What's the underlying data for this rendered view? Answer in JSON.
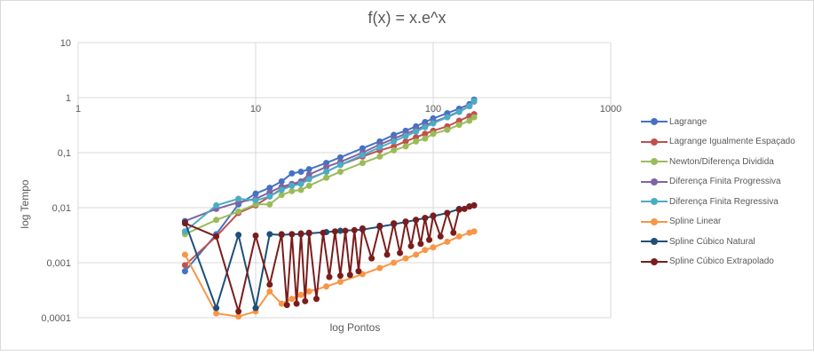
{
  "chart_data": {
    "type": "line",
    "title": "f(x) = x.e^x",
    "xlabel": "log Pontos",
    "ylabel": "log Tempo",
    "x_scale": "log",
    "y_scale": "log",
    "xlim": [
      1,
      1000
    ],
    "ylim": [
      0.0001,
      10
    ],
    "x_ticks": [
      "1",
      "10",
      "100",
      "1000"
    ],
    "y_ticks": [
      "10",
      "1",
      "0,1",
      "0,01",
      "0,001",
      "0,0001"
    ],
    "grid": true,
    "legend_position": "right",
    "series": [
      {
        "name": "Lagrange",
        "color": "#4472c4",
        "points": [
          [
            4,
            0.0007
          ],
          [
            6,
            0.0033
          ],
          [
            8,
            0.0115
          ],
          [
            10,
            0.018
          ],
          [
            12,
            0.023
          ],
          [
            14,
            0.03
          ],
          [
            16,
            0.042
          ],
          [
            18,
            0.045
          ],
          [
            20,
            0.05
          ],
          [
            25,
            0.065
          ],
          [
            30,
            0.082
          ],
          [
            40,
            0.12
          ],
          [
            50,
            0.16
          ],
          [
            60,
            0.21
          ],
          [
            70,
            0.25
          ],
          [
            80,
            0.3
          ],
          [
            90,
            0.36
          ],
          [
            100,
            0.42
          ],
          [
            120,
            0.52
          ],
          [
            140,
            0.63
          ],
          [
            160,
            0.76
          ],
          [
            170,
            0.92
          ]
        ]
      },
      {
        "name": "Lagrange Igualmente Espaçado",
        "color": "#c0504d",
        "points": [
          [
            4,
            0.0009
          ],
          [
            6,
            0.003
          ],
          [
            8,
            0.008
          ],
          [
            10,
            0.011
          ],
          [
            12,
            0.016
          ],
          [
            14,
            0.022
          ],
          [
            16,
            0.026
          ],
          [
            18,
            0.029
          ],
          [
            20,
            0.034
          ],
          [
            25,
            0.045
          ],
          [
            30,
            0.06
          ],
          [
            40,
            0.085
          ],
          [
            50,
            0.11
          ],
          [
            60,
            0.13
          ],
          [
            70,
            0.16
          ],
          [
            80,
            0.19
          ],
          [
            90,
            0.22
          ],
          [
            100,
            0.25
          ],
          [
            120,
            0.3
          ],
          [
            140,
            0.38
          ],
          [
            160,
            0.46
          ],
          [
            170,
            0.5
          ]
        ]
      },
      {
        "name": "Newton/Diferença Dividida",
        "color": "#9bbb59",
        "points": [
          [
            4,
            0.0033
          ],
          [
            6,
            0.006
          ],
          [
            8,
            0.0085
          ],
          [
            10,
            0.0115
          ],
          [
            12,
            0.0115
          ],
          [
            14,
            0.017
          ],
          [
            16,
            0.02
          ],
          [
            18,
            0.021
          ],
          [
            20,
            0.025
          ],
          [
            25,
            0.035
          ],
          [
            30,
            0.045
          ],
          [
            40,
            0.065
          ],
          [
            50,
            0.085
          ],
          [
            60,
            0.11
          ],
          [
            70,
            0.13
          ],
          [
            80,
            0.16
          ],
          [
            90,
            0.18
          ],
          [
            100,
            0.22
          ],
          [
            120,
            0.26
          ],
          [
            140,
            0.32
          ],
          [
            160,
            0.38
          ],
          [
            170,
            0.44
          ]
        ]
      },
      {
        "name": "Diferença Finita Progressiva",
        "color": "#8064a2",
        "points": [
          [
            4,
            0.0057
          ],
          [
            6,
            0.0095
          ],
          [
            8,
            0.0125
          ],
          [
            10,
            0.0145
          ],
          [
            12,
            0.019
          ],
          [
            14,
            0.024
          ],
          [
            16,
            0.027
          ],
          [
            18,
            0.03
          ],
          [
            20,
            0.04
          ],
          [
            25,
            0.055
          ],
          [
            30,
            0.068
          ],
          [
            40,
            0.1
          ],
          [
            50,
            0.14
          ],
          [
            60,
            0.18
          ],
          [
            70,
            0.22
          ],
          [
            80,
            0.26
          ],
          [
            90,
            0.31
          ],
          [
            100,
            0.36
          ],
          [
            120,
            0.45
          ],
          [
            140,
            0.56
          ],
          [
            160,
            0.7
          ],
          [
            170,
            0.85
          ]
        ]
      },
      {
        "name": "Diferença Finita Regressiva",
        "color": "#4bacc6",
        "points": [
          [
            4,
            0.0037
          ],
          [
            6,
            0.011
          ],
          [
            8,
            0.0145
          ],
          [
            10,
            0.0135
          ],
          [
            12,
            0.016
          ],
          [
            14,
            0.021
          ],
          [
            16,
            0.025
          ],
          [
            18,
            0.027
          ],
          [
            20,
            0.033
          ],
          [
            25,
            0.045
          ],
          [
            30,
            0.06
          ],
          [
            40,
            0.09
          ],
          [
            50,
            0.125
          ],
          [
            60,
            0.16
          ],
          [
            70,
            0.2
          ],
          [
            80,
            0.24
          ],
          [
            90,
            0.29
          ],
          [
            100,
            0.34
          ],
          [
            120,
            0.44
          ],
          [
            140,
            0.55
          ],
          [
            160,
            0.7
          ],
          [
            170,
            0.87
          ]
        ]
      },
      {
        "name": "Spline Linear",
        "color": "#f79646",
        "points": [
          [
            4,
            0.0014
          ],
          [
            6,
            0.00012
          ],
          [
            8,
            0.000105
          ],
          [
            10,
            0.00013
          ],
          [
            12,
            0.0003
          ],
          [
            14,
            0.00018
          ],
          [
            16,
            0.00022
          ],
          [
            18,
            0.00026
          ],
          [
            20,
            0.0003
          ],
          [
            25,
            0.00037
          ],
          [
            30,
            0.00045
          ],
          [
            40,
            0.00062
          ],
          [
            50,
            0.0008
          ],
          [
            60,
            0.001
          ],
          [
            70,
            0.0012
          ],
          [
            80,
            0.0014
          ],
          [
            90,
            0.0017
          ],
          [
            100,
            0.0019
          ],
          [
            120,
            0.0024
          ],
          [
            140,
            0.003
          ],
          [
            160,
            0.0035
          ],
          [
            170,
            0.0037
          ]
        ]
      },
      {
        "name": "Spline Cúbico Natural",
        "color": "#1f4e79",
        "points": [
          [
            4,
            0.0055
          ],
          [
            6,
            0.00015
          ],
          [
            8,
            0.0032
          ],
          [
            10,
            0.00015
          ],
          [
            12,
            0.0033
          ],
          [
            14,
            0.0032
          ],
          [
            16,
            0.0033
          ],
          [
            18,
            0.0033
          ],
          [
            20,
            0.0034
          ],
          [
            25,
            0.0036
          ],
          [
            30,
            0.0038
          ],
          [
            40,
            0.004
          ],
          [
            50,
            0.0045
          ],
          [
            60,
            0.005
          ],
          [
            70,
            0.0055
          ],
          [
            80,
            0.006
          ],
          [
            90,
            0.0065
          ],
          [
            100,
            0.007
          ],
          [
            120,
            0.008
          ],
          [
            140,
            0.0095
          ],
          [
            160,
            0.0105
          ],
          [
            170,
            0.011
          ]
        ]
      },
      {
        "name": "Spline Cúbico Extrapolado",
        "color": "#7b1c1c",
        "points": [
          [
            4,
            0.0052
          ],
          [
            6,
            0.003
          ],
          [
            8,
            0.00013
          ],
          [
            10,
            0.0031
          ],
          [
            12,
            0.0004
          ],
          [
            14,
            0.0033
          ],
          [
            15,
            0.00017
          ],
          [
            16,
            0.0033
          ],
          [
            17,
            0.00018
          ],
          [
            18,
            0.0034
          ],
          [
            19,
            0.0002
          ],
          [
            20,
            0.0035
          ],
          [
            22,
            0.00022
          ],
          [
            24,
            0.0035
          ],
          [
            26,
            0.00055
          ],
          [
            28,
            0.0037
          ],
          [
            30,
            0.00058
          ],
          [
            32,
            0.0038
          ],
          [
            34,
            0.0006
          ],
          [
            36,
            0.0039
          ],
          [
            38,
            0.0007
          ],
          [
            40,
            0.0042
          ],
          [
            45,
            0.0012
          ],
          [
            50,
            0.0047
          ],
          [
            55,
            0.0014
          ],
          [
            60,
            0.0052
          ],
          [
            65,
            0.0015
          ],
          [
            70,
            0.0056
          ],
          [
            75,
            0.002
          ],
          [
            80,
            0.006
          ],
          [
            85,
            0.0022
          ],
          [
            90,
            0.0065
          ],
          [
            95,
            0.0026
          ],
          [
            100,
            0.0072
          ],
          [
            110,
            0.003
          ],
          [
            120,
            0.008
          ],
          [
            130,
            0.0035
          ],
          [
            140,
            0.0092
          ],
          [
            150,
            0.0095
          ],
          [
            160,
            0.0105
          ],
          [
            170,
            0.011
          ]
        ]
      }
    ]
  }
}
